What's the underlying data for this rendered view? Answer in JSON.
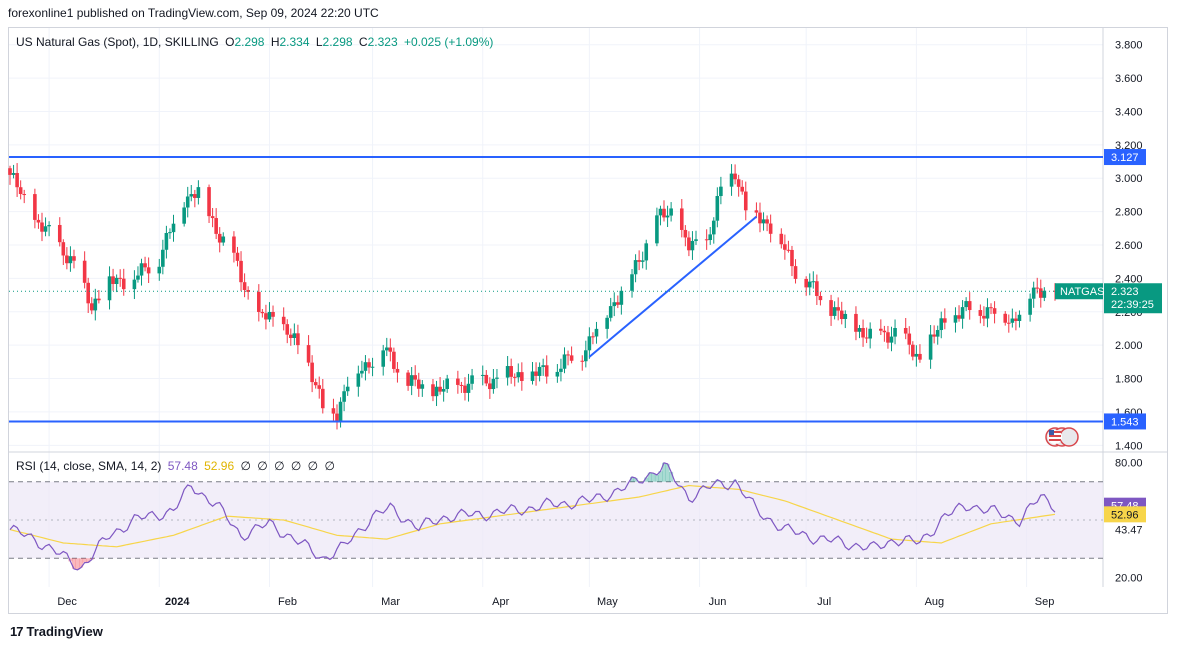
{
  "header": {
    "published": "forexonline1 published on TradingView.com, Sep 09, 2024 22:20 UTC"
  },
  "legend": {
    "symbol": "US Natural Gas (Spot), 1D, SKILLING",
    "o_label": "O",
    "o": "2.298",
    "h_label": "H",
    "h": "2.334",
    "l_label": "L",
    "l": "2.298",
    "c_label": "C",
    "c": "2.323",
    "change": "+0.025 (+1.09%)"
  },
  "rsi_legend": {
    "label": "RSI (14, close, SMA, 14, 2)",
    "rsi": "57.48",
    "sma": "52.96",
    "empty": [
      "∅",
      "∅",
      "∅",
      "∅",
      "∅",
      "∅"
    ]
  },
  "footer": {
    "brand": "TradingView"
  },
  "colors": {
    "up": "#089981",
    "down": "#f23645",
    "level_line": "#2962ff",
    "rsi_line": "#7e57c2",
    "rsi_sma": "#f7d54a",
    "rsi_band": "#ede7f6"
  },
  "chart_data": {
    "type": "candlestick",
    "title": "US Natural Gas (Spot), 1D, SKILLING",
    "price_axis": {
      "ticks": [
        "3.800",
        "3.600",
        "3.400",
        "3.200",
        "3.000",
        "2.800",
        "2.600",
        "2.400",
        "2.200",
        "2.000",
        "1.800",
        "1.600",
        "1.400"
      ],
      "range": [
        1.36,
        3.9
      ]
    },
    "time_axis": {
      "labels": [
        "Dec",
        "2024",
        "Feb",
        "Mar",
        "Apr",
        "May",
        "Jun",
        "Jul",
        "Aug",
        "Sep"
      ]
    },
    "horizontal_levels": [
      {
        "price": 3.127,
        "label": "3.127"
      },
      {
        "price": 1.543,
        "label": "1.543"
      }
    ],
    "trendline": {
      "from": {
        "date": "2024-05-01",
        "price": 1.93
      },
      "to": {
        "date": "2024-06-17",
        "price": 2.77
      }
    },
    "last_price": {
      "symbol": "NATGAS",
      "price": "2.323",
      "countdown": "22:39:25"
    },
    "anchors": [
      [
        "2023-11-20",
        3.02
      ],
      [
        "2023-11-27",
        2.75
      ],
      [
        "2023-12-04",
        2.6
      ],
      [
        "2023-12-08",
        2.48
      ],
      [
        "2023-12-13",
        2.24
      ],
      [
        "2023-12-18",
        2.38
      ],
      [
        "2023-12-25",
        2.4
      ],
      [
        "2024-01-01",
        2.52
      ],
      [
        "2024-01-08",
        2.88
      ],
      [
        "2024-01-12",
        2.92
      ],
      [
        "2024-01-17",
        2.7
      ],
      [
        "2024-01-22",
        2.52
      ],
      [
        "2024-01-29",
        2.15
      ],
      [
        "2024-02-01",
        2.18
      ],
      [
        "2024-02-05",
        2.1
      ],
      [
        "2024-02-12",
        1.9
      ],
      [
        "2024-02-16",
        1.62
      ],
      [
        "2024-02-20",
        1.6
      ],
      [
        "2024-02-23",
        1.78
      ],
      [
        "2024-02-28",
        1.88
      ],
      [
        "2024-03-04",
        1.98
      ],
      [
        "2024-03-11",
        1.78
      ],
      [
        "2024-03-18",
        1.72
      ],
      [
        "2024-03-25",
        1.76
      ],
      [
        "2024-04-01",
        1.78
      ],
      [
        "2024-04-08",
        1.82
      ],
      [
        "2024-04-15",
        1.82
      ],
      [
        "2024-04-22",
        1.87
      ],
      [
        "2024-04-29",
        1.96
      ],
      [
        "2024-05-06",
        2.2
      ],
      [
        "2024-05-13",
        2.42
      ],
      [
        "2024-05-20",
        2.75
      ],
      [
        "2024-05-24",
        2.8
      ],
      [
        "2024-05-29",
        2.58
      ],
      [
        "2024-06-03",
        2.62
      ],
      [
        "2024-06-07",
        2.92
      ],
      [
        "2024-06-11",
        3.05
      ],
      [
        "2024-06-14",
        2.82
      ],
      [
        "2024-06-17",
        2.78
      ],
      [
        "2024-06-21",
        2.72
      ],
      [
        "2024-06-28",
        2.45
      ],
      [
        "2024-07-05",
        2.28
      ],
      [
        "2024-07-12",
        2.15
      ],
      [
        "2024-07-19",
        2.05
      ],
      [
        "2024-07-26",
        2.08
      ],
      [
        "2024-08-02",
        1.92
      ],
      [
        "2024-08-09",
        2.15
      ],
      [
        "2024-08-16",
        2.22
      ],
      [
        "2024-08-23",
        2.2
      ],
      [
        "2024-08-28",
        2.15
      ],
      [
        "2024-09-03",
        2.32
      ],
      [
        "2024-09-06",
        2.35
      ],
      [
        "2024-09-09",
        2.323
      ]
    ]
  },
  "rsi_data": {
    "type": "line",
    "axis_ticks": [
      "80.00",
      "20.00"
    ],
    "band_levels": [
      "57.43",
      "43.47"
    ],
    "band": [
      30,
      70
    ],
    "range": [
      15,
      85
    ],
    "current": {
      "rsi": "57.48",
      "sma": "52.96"
    },
    "rsi_anchors": [
      [
        "2023-11-20",
        45
      ],
      [
        "2023-11-27",
        40
      ],
      [
        "2023-12-04",
        32
      ],
      [
        "2023-12-10",
        25
      ],
      [
        "2023-12-18",
        42
      ],
      [
        "2023-12-25",
        50
      ],
      [
        "2024-01-05",
        55
      ],
      [
        "2024-01-10",
        68
      ],
      [
        "2024-01-17",
        58
      ],
      [
        "2024-01-24",
        42
      ],
      [
        "2024-02-01",
        48
      ],
      [
        "2024-02-08",
        40
      ],
      [
        "2024-02-16",
        30
      ],
      [
        "2024-02-22",
        36
      ],
      [
        "2024-03-01",
        52
      ],
      [
        "2024-03-06",
        56
      ],
      [
        "2024-03-14",
        46
      ],
      [
        "2024-03-22",
        52
      ],
      [
        "2024-04-01",
        53
      ],
      [
        "2024-04-10",
        55
      ],
      [
        "2024-04-20",
        58
      ],
      [
        "2024-05-01",
        60
      ],
      [
        "2024-05-10",
        66
      ],
      [
        "2024-05-22",
        78
      ],
      [
        "2024-05-29",
        62
      ],
      [
        "2024-06-05",
        68
      ],
      [
        "2024-06-11",
        70
      ],
      [
        "2024-06-17",
        55
      ],
      [
        "2024-06-25",
        45
      ],
      [
        "2024-07-05",
        40
      ],
      [
        "2024-07-12",
        38
      ],
      [
        "2024-07-20",
        35
      ],
      [
        "2024-07-26",
        40
      ],
      [
        "2024-08-02",
        38
      ],
      [
        "2024-08-09",
        52
      ],
      [
        "2024-08-16",
        58
      ],
      [
        "2024-08-23",
        54
      ],
      [
        "2024-08-30",
        50
      ],
      [
        "2024-09-05",
        62
      ],
      [
        "2024-09-09",
        57.48
      ]
    ],
    "sma_anchors": [
      [
        "2023-11-20",
        45
      ],
      [
        "2023-12-05",
        38
      ],
      [
        "2023-12-20",
        36
      ],
      [
        "2024-01-05",
        42
      ],
      [
        "2024-01-20",
        52
      ],
      [
        "2024-02-05",
        50
      ],
      [
        "2024-02-20",
        42
      ],
      [
        "2024-03-05",
        40
      ],
      [
        "2024-03-20",
        48
      ],
      [
        "2024-04-05",
        52
      ],
      [
        "2024-04-25",
        57
      ],
      [
        "2024-05-15",
        62
      ],
      [
        "2024-05-29",
        68
      ],
      [
        "2024-06-12",
        66
      ],
      [
        "2024-06-25",
        60
      ],
      [
        "2024-07-10",
        50
      ],
      [
        "2024-07-25",
        40
      ],
      [
        "2024-08-08",
        38
      ],
      [
        "2024-08-22",
        48
      ],
      [
        "2024-09-09",
        52.96
      ]
    ]
  }
}
